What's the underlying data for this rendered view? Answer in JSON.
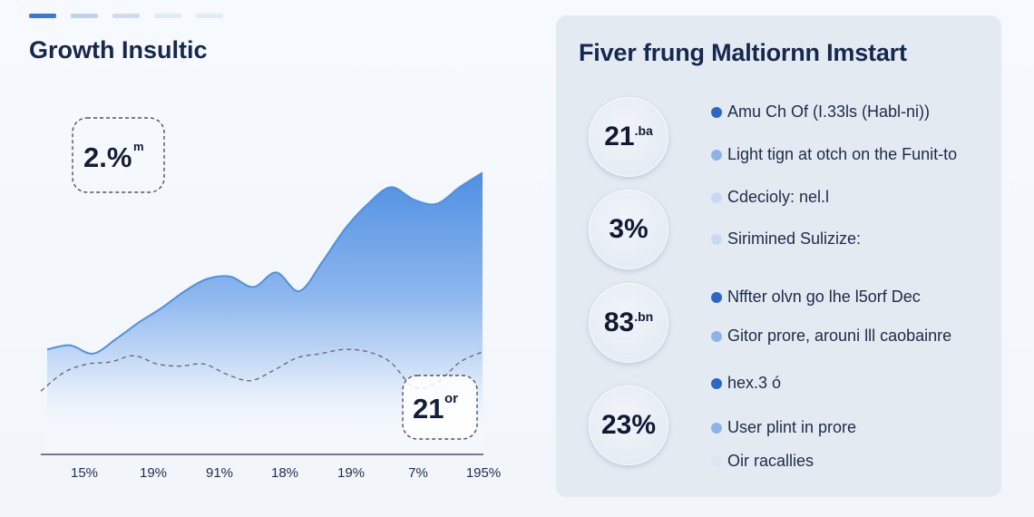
{
  "tabs": [
    {
      "label": "",
      "active": true
    },
    {
      "label": "",
      "active": false
    },
    {
      "label": "",
      "active": false
    },
    {
      "label": "",
      "active": false
    },
    {
      "label": "",
      "active": false
    }
  ],
  "left_title": "Growth Insultic",
  "chart_data": {
    "type": "area",
    "title": "Growth Insultic",
    "xlabel": "",
    "ylabel": "",
    "x_ticks": [
      "15%",
      "19%",
      "91%",
      "18%",
      "19%",
      "7%",
      "195%"
    ],
    "series": [
      {
        "values": [
          20,
          22,
          18,
          25,
          33,
          40,
          48,
          54,
          55,
          50,
          57,
          48,
          62,
          78,
          90,
          98,
          92,
          90,
          98,
          105
        ]
      }
    ],
    "baseline_series": [
      {
        "values": [
          0,
          9,
          13,
          14,
          17,
          13,
          12,
          13,
          8,
          5,
          10,
          16,
          18,
          20,
          19,
          14,
          2,
          4,
          14,
          19
        ]
      }
    ],
    "ylim": [
      -30,
      140
    ],
    "grid": false,
    "annotations": [
      {
        "text": "2.%",
        "suffix": "m",
        "anchor": "upper-left"
      },
      {
        "text": "21",
        "suffix": "or",
        "anchor": "lower-right"
      }
    ],
    "colors": {
      "area_top": "#4f90e2",
      "area_bottom": "#ffffff",
      "baseline": "#6a6e79"
    }
  },
  "panel": {
    "title": "Fiver frung Maltiornn Imstart",
    "stats": [
      {
        "value": "21",
        "suffix": ".ba"
      },
      {
        "value": "3%",
        "suffix": ""
      },
      {
        "value": "83",
        "suffix": ".bn"
      },
      {
        "value": "23%",
        "suffix": ""
      }
    ],
    "bullets": [
      {
        "text": "Amu Ch Of (I.33ls (Habl-ni))",
        "tone": "dark"
      },
      {
        "text": "Light tign at otch on the Funit-to",
        "tone": "light"
      },
      {
        "text": "Cdecioly: nel.l",
        "tone": "pale"
      },
      {
        "text": "Sirimined Sulizize:",
        "tone": "pale"
      },
      {
        "text": "Nffter olvn go lhe l5orf Dec",
        "tone": "dark"
      },
      {
        "text": "Gitor prore, arouni lll caobainre",
        "tone": "light"
      },
      {
        "text": "hex.3 ó",
        "tone": "dark"
      },
      {
        "text": "User plint in prore",
        "tone": "light"
      },
      {
        "text": "Oir racallies",
        "tone": "faint"
      }
    ]
  },
  "colors": {
    "accent": "#3c78d8",
    "title": "#16284d",
    "panel_bg": "#e3eaf2",
    "page_bg": "#f4f7fb"
  }
}
